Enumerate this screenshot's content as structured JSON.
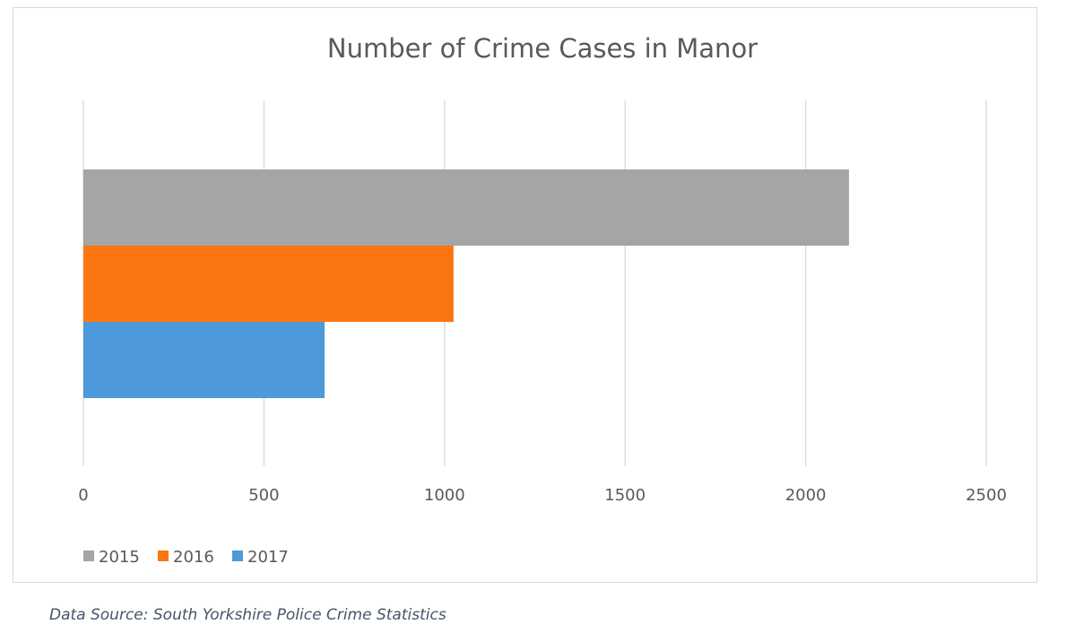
{
  "chart_data": {
    "type": "bar",
    "orientation": "horizontal",
    "title": "Number of Crime Cases in Manor",
    "xlabel": "",
    "ylabel": "",
    "xlim": [
      0,
      2500
    ],
    "xticks": [
      "0",
      "500",
      "1000",
      "1500",
      "2000",
      "2500"
    ],
    "grid": true,
    "legend_position": "bottom-left",
    "series": [
      {
        "name": "2015",
        "value": 2120,
        "color": "#a5a5a5"
      },
      {
        "name": "2016",
        "value": 1025,
        "color": "#fb7610"
      },
      {
        "name": "2017",
        "value": 668,
        "color": "#4e99d9"
      }
    ]
  },
  "source": "Data Source: South Yorkshire Police Crime Statistics"
}
